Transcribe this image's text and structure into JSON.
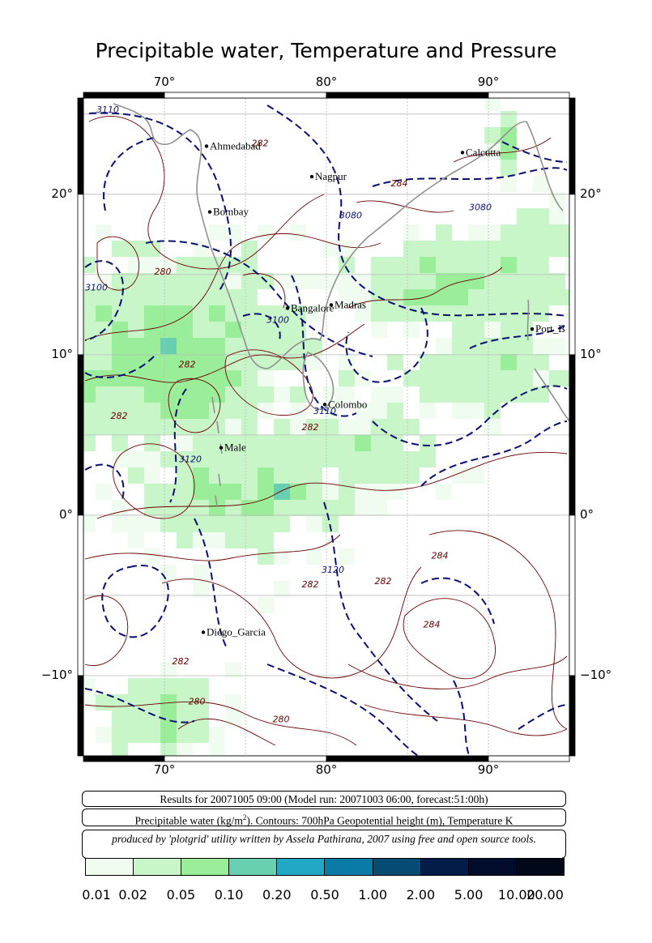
{
  "title": "Precipitable water, Temperature and Pressure",
  "map": {
    "lon_range": [
      65,
      95
    ],
    "lat_range": [
      -15,
      26
    ],
    "lon_ticks": [
      {
        "lon": 70,
        "label": "70°"
      },
      {
        "lon": 80,
        "label": "80°"
      },
      {
        "lon": 90,
        "label": "90°"
      }
    ],
    "lat_ticks": [
      {
        "lat": 20,
        "label": "20°"
      },
      {
        "lat": 10,
        "label": "10°"
      },
      {
        "lat": 0,
        "label": "0°"
      },
      {
        "lat": -10,
        "label": "−10°"
      }
    ],
    "cities": [
      {
        "name": "Ahmedabad",
        "lon": 72.6,
        "lat": 23.0
      },
      {
        "name": "Calcutta",
        "lon": 88.4,
        "lat": 22.6
      },
      {
        "name": "Nagpur",
        "lon": 79.1,
        "lat": 21.1
      },
      {
        "name": "Bombay",
        "lon": 72.8,
        "lat": 18.9
      },
      {
        "name": "Bangalore",
        "lon": 77.6,
        "lat": 12.9
      },
      {
        "name": "Madras",
        "lon": 80.3,
        "lat": 13.1
      },
      {
        "name": "Port_B",
        "lon": 92.7,
        "lat": 11.6
      },
      {
        "name": "Colombo",
        "lon": 79.9,
        "lat": 6.9
      },
      {
        "name": "Male",
        "lon": 73.5,
        "lat": 4.2
      },
      {
        "name": "Diego_Garcia",
        "lon": 72.4,
        "lat": -7.3
      }
    ],
    "contour_labels": [
      {
        "text": "3110",
        "lon": 66.5,
        "lat": 25.1
      },
      {
        "text": "282",
        "lon": 75.9,
        "lat": 23.0
      },
      {
        "text": "284",
        "lon": 84.5,
        "lat": 20.5
      },
      {
        "text": "3080",
        "lon": 81.5,
        "lat": 18.5
      },
      {
        "text": "3080",
        "lon": 89.5,
        "lat": 19.0
      },
      {
        "text": "280",
        "lon": 69.9,
        "lat": 15.0
      },
      {
        "text": "3100",
        "lon": 65.8,
        "lat": 14.0
      },
      {
        "text": "3100",
        "lon": 77.0,
        "lat": 12.0
      },
      {
        "text": "282",
        "lon": 71.4,
        "lat": 9.2
      },
      {
        "text": "282",
        "lon": 67.2,
        "lat": 6.0
      },
      {
        "text": "3110",
        "lon": 79.9,
        "lat": 6.3
      },
      {
        "text": "282",
        "lon": 79.0,
        "lat": 5.3
      },
      {
        "text": "3120",
        "lon": 71.6,
        "lat": 3.3
      },
      {
        "text": "3120",
        "lon": 80.4,
        "lat": -3.6
      },
      {
        "text": "282",
        "lon": 79.0,
        "lat": -4.5
      },
      {
        "text": "282",
        "lon": 83.5,
        "lat": -4.3
      },
      {
        "text": "284",
        "lon": 87.0,
        "lat": -2.7
      },
      {
        "text": "284",
        "lon": 86.5,
        "lat": -7.0
      },
      {
        "text": "282",
        "lon": 71.0,
        "lat": -9.3
      },
      {
        "text": "280",
        "lon": 72.0,
        "lat": -11.8
      },
      {
        "text": "280",
        "lon": 77.2,
        "lat": -12.9
      }
    ]
  },
  "info": {
    "results_line": "Results for 20071005 09:00 (Model run: 20071003 06:00, forecast:51:00h)",
    "desc_prefix": "Precipitable water (kg/m",
    "desc_sup": "2",
    "desc_suffix": ").  Contours: 700hPa Geopotential height (m), Temperature K",
    "credit": "produced by 'plotgrid' utility written by Assela Pathirana, 2007 using free and open source tools."
  },
  "colorbar": {
    "colors": [
      "#f0fcf0",
      "#c8f6c8",
      "#9aee9a",
      "#68d0b0",
      "#22a8c4",
      "#0a7aa6",
      "#044c74",
      "#021e48",
      "#020c2c",
      "#010818",
      "#000000"
    ],
    "labels": [
      "0.01",
      "0.02",
      "0.05",
      "0.10",
      "0.20",
      "0.50",
      "1.00",
      "2.00",
      "5.00",
      "10.00",
      "20.00"
    ]
  }
}
